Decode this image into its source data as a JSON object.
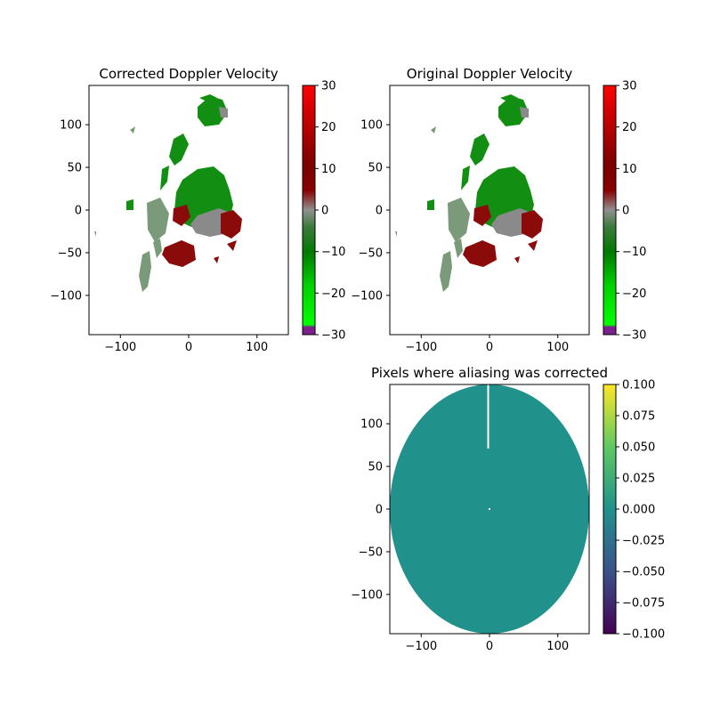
{
  "colors": {
    "background": "#ffffff",
    "velocity_colormap": [
      "#7a1f8c",
      "#00ff00",
      "#00c000",
      "#008000",
      "#006000",
      "#808080",
      "#8b0000",
      "#b00000",
      "#d80000",
      "#ff0000"
    ],
    "aliasing_colormap": [
      "#440154",
      "#3b528b",
      "#21918c",
      "#5ec962",
      "#fde725"
    ],
    "green_echo": "#118f11",
    "gray_echo": "#7a9a7a",
    "red_echo": "#8b0a0a",
    "aliasing_fill": "#21918c"
  },
  "chart_data": [
    {
      "type": "heatmap",
      "title": "Corrected Doppler Velocity",
      "xlim": [
        -146,
        146
      ],
      "ylim": [
        -146,
        146
      ],
      "xticks": [
        -100,
        0,
        100
      ],
      "yticks": [
        -100,
        -50,
        0,
        50,
        100
      ],
      "xtick_labels": [
        "−100",
        "0",
        "100"
      ],
      "ytick_labels": [
        "−100",
        "−50",
        "0",
        "50",
        "100"
      ],
      "colorbar": {
        "range": [
          -30,
          30
        ],
        "ticks": [
          -30,
          -20,
          -10,
          0,
          10,
          20,
          30
        ],
        "tick_labels": [
          "−30",
          "−20",
          "−10",
          "0",
          "10",
          "20",
          "30"
        ]
      }
    },
    {
      "type": "heatmap",
      "title": "Original Doppler Velocity",
      "xlim": [
        -146,
        146
      ],
      "ylim": [
        -146,
        146
      ],
      "xticks": [
        -100,
        0,
        100
      ],
      "yticks": [
        -100,
        -50,
        0,
        50,
        100
      ],
      "xtick_labels": [
        "−100",
        "0",
        "100"
      ],
      "ytick_labels": [
        "−100",
        "−50",
        "0",
        "50",
        "100"
      ],
      "colorbar": {
        "range": [
          -30,
          30
        ],
        "ticks": [
          -30,
          -20,
          -10,
          0,
          10,
          20,
          30
        ],
        "tick_labels": [
          "−30",
          "−20",
          "−10",
          "0",
          "10",
          "20",
          "30"
        ]
      }
    },
    {
      "type": "heatmap",
      "title": "Pixels where aliasing was corrected",
      "xlim": [
        -146,
        146
      ],
      "ylim": [
        -146,
        146
      ],
      "xticks": [
        -100,
        0,
        100
      ],
      "yticks": [
        -100,
        -50,
        0,
        50,
        100
      ],
      "xtick_labels": [
        "−100",
        "0",
        "100"
      ],
      "ytick_labels": [
        "−100",
        "−50",
        "0",
        "50",
        "100"
      ],
      "value_shown": 0.0,
      "colorbar": {
        "range": [
          -0.1,
          0.1
        ],
        "ticks": [
          -0.1,
          -0.075,
          -0.05,
          -0.025,
          0,
          0.025,
          0.05,
          0.075,
          0.1
        ],
        "tick_labels": [
          "−0.100",
          "−0.075",
          "−0.050",
          "−0.025",
          "0.000",
          "0.025",
          "0.050",
          "0.075",
          "0.100"
        ]
      }
    }
  ]
}
